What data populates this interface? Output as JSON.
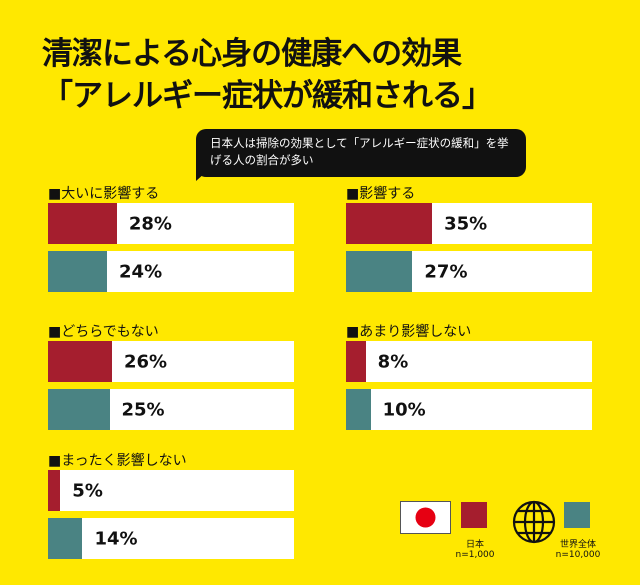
{
  "title_line1": "清潔による心身の健康への効果",
  "title_line2": "「アレルギー症状が緩和される」",
  "callout": "日本人は掃除の効果として「アレルギー症状の緩和」を挙げる人の割合が多い",
  "colors": {
    "background": "#FFE800",
    "japan": "#A51E2E",
    "world": "#4A8383"
  },
  "legend": {
    "japan": {
      "label": "日本",
      "n": "n=1,000",
      "icon": "japan-flag-icon"
    },
    "world": {
      "label": "世界全体",
      "n": "n=10,000",
      "icon": "globe-icon"
    }
  },
  "chart_data": {
    "type": "bar",
    "orientation": "horizontal",
    "xlim": [
      0,
      100
    ],
    "series": [
      {
        "name": "日本"
      },
      {
        "name": "世界全体"
      }
    ],
    "categories": [
      "■大いに影響する",
      "■影響する",
      "■どちらでもない",
      "■あまり影響しない",
      "■まったく影響しない"
    ],
    "groups": [
      {
        "label": "■大いに影響する",
        "japan": 28,
        "world": 24,
        "japan_label": "28%",
        "world_label": "24%"
      },
      {
        "label": "■影響する",
        "japan": 35,
        "world": 27,
        "japan_label": "35%",
        "world_label": "27%"
      },
      {
        "label": "■どちらでもない",
        "japan": 26,
        "world": 25,
        "japan_label": "26%",
        "world_label": "25%"
      },
      {
        "label": "■あまり影響しない",
        "japan": 8,
        "world": 10,
        "japan_label": "8%",
        "world_label": "10%"
      },
      {
        "label": "■まったく影響しない",
        "japan": 5,
        "world": 14,
        "japan_label": "5%",
        "world_label": "14%"
      }
    ]
  }
}
